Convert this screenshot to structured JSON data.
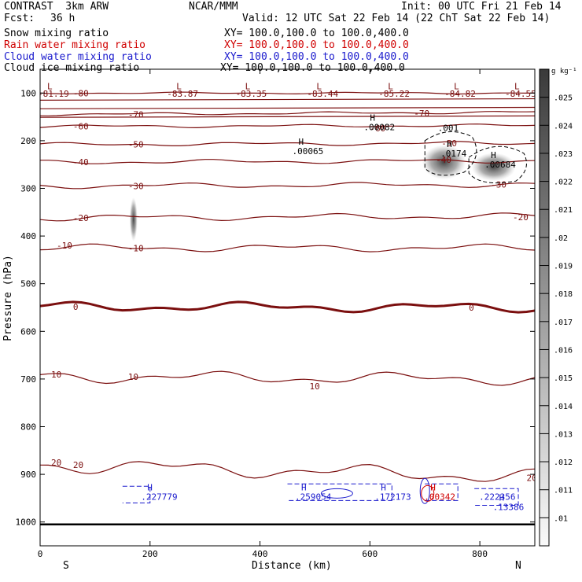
{
  "header": {
    "model": "CONTRAST  3km ARW",
    "org": "NCAR/MMM",
    "init": "Init: 00 UTC Fri 21 Feb 14",
    "fcst_label": "Fcst:",
    "fcst_value": "36 h",
    "valid": "Valid: 12 UTC Sat 22 Feb 14 (22 ChT Sat 22 Feb 14)"
  },
  "fields": [
    {
      "name": "Snow mixing ratio",
      "xy": "XY= 100.0,100.0 to 100.0,400.0",
      "color": "#000000"
    },
    {
      "name": "Rain water mixing ratio",
      "xy": "XY= 100.0,100.0 to 100.0,400.0",
      "color": "#d00000"
    },
    {
      "name": "Cloud water mixing ratio",
      "xy": "XY= 100.0,100.0 to 100.0,400.0",
      "color": "#1a1acd"
    },
    {
      "name": "Cloud ice mixing ratio",
      "xy": "XY= 100.0,100.0 to 100.0,400.0",
      "color": "#000000"
    }
  ],
  "chart_data": {
    "type": "cross-section",
    "xlabel": "Distance (km)",
    "ylabel": "Pressure (hPa)",
    "xlim": [
      0,
      900
    ],
    "ylim": [
      1050,
      50
    ],
    "x_ticks": [
      0,
      200,
      400,
      600,
      800
    ],
    "y_ticks": [
      100,
      200,
      300,
      400,
      500,
      600,
      700,
      800,
      900,
      1000
    ],
    "x_end_labels": {
      "left": "S",
      "right": "N"
    },
    "colorbar": {
      "unit": "g kg⁻¹",
      "labels": [
        ".025",
        ".024",
        ".023",
        ".022",
        ".021",
        ".02",
        ".019",
        ".018",
        ".017",
        ".016",
        ".015",
        ".014",
        ".013",
        ".012",
        ".011",
        ".01"
      ]
    },
    "temperature_isotherms": [
      {
        "value": -80,
        "p": [
          100,
          100
        ]
      },
      {
        "value": -70,
        "p": [
          145,
          140
        ]
      },
      {
        "value": -60,
        "p": [
          170,
          168
        ]
      },
      {
        "value": -50,
        "p": [
          208,
          205
        ]
      },
      {
        "value": -40,
        "p": [
          245,
          242
        ]
      },
      {
        "value": -30,
        "p": [
          295,
          292
        ]
      },
      {
        "value": -20,
        "p": [
          362,
          358
        ]
      },
      {
        "value": -10,
        "p": [
          425,
          425
        ]
      },
      {
        "value": 0,
        "p": [
          548,
          550
        ]
      },
      {
        "value": 10,
        "p": [
          695,
          700
        ]
      },
      {
        "value": 20,
        "p": [
          880,
          905
        ]
      }
    ],
    "extra_isotherm_labels": [
      {
        "text": "-70",
        "x": 680,
        "p": 142
      },
      {
        "text": "-60",
        "x": 600,
        "p": 174
      },
      {
        "text": "-50",
        "x": 730,
        "p": 205
      },
      {
        "text": "-40",
        "x": 720,
        "p": 240
      },
      {
        "text": "-30",
        "x": 820,
        "p": 292
      },
      {
        "text": "-20",
        "x": 860,
        "p": 360
      },
      {
        "text": "-10",
        "x": 30,
        "p": 420
      },
      {
        "text": "0",
        "x": 780,
        "p": 550
      },
      {
        "text": "10",
        "x": 20,
        "p": 690
      },
      {
        "text": "10",
        "x": 490,
        "p": 715
      },
      {
        "text": "20",
        "x": 20,
        "p": 875
      },
      {
        "text": "20",
        "x": 885,
        "p": 907
      }
    ],
    "tropopause_minima": [
      {
        "label": "L",
        "value": "-81.19",
        "x": 30
      },
      {
        "label": "L",
        "value": "-83.87",
        "x": 265
      },
      {
        "label": "L",
        "value": "-83.35",
        "x": 390
      },
      {
        "label": "L",
        "value": "-83.44",
        "x": 520
      },
      {
        "label": "L",
        "value": "-85.22",
        "x": 650
      },
      {
        "label": "L",
        "value": "-84.82",
        "x": 770
      },
      {
        "label": "L",
        "value": "-84.55",
        "x": 880
      }
    ],
    "maxima_labels": [
      {
        "label": "H",
        "value": ".00082",
        "x": 600,
        "p": 165,
        "color": "#000000"
      },
      {
        "label": "H",
        "value": ".00065",
        "x": 470,
        "p": 215,
        "color": "#000000"
      },
      {
        "label": "H",
        "value": ".0174",
        "x": 740,
        "p": 220,
        "color": "#000000"
      },
      {
        "label": "H",
        "value": ".00684",
        "x": 820,
        "p": 243,
        "color": "#000000"
      },
      {
        "label": "",
        "value": ".001",
        "x": 735,
        "p": 166,
        "color": "#000000"
      },
      {
        "label": "H",
        "value": ".227779",
        "x": 195,
        "p": 940,
        "color": "#1a1acd"
      },
      {
        "label": "H",
        "value": ".259054",
        "x": 475,
        "p": 940,
        "color": "#1a1acd"
      },
      {
        "label": "H",
        "value": ".172173",
        "x": 620,
        "p": 940,
        "color": "#1a1acd"
      },
      {
        "label": "H",
        "value": ".00342",
        "x": 710,
        "p": 940,
        "color": "#d00000"
      },
      {
        "label": "",
        "value": ".222356",
        "x": 810,
        "p": 940,
        "color": "#1a1acd"
      },
      {
        "label": "H",
        "value": ".13386",
        "x": 835,
        "p": 962,
        "color": "#1a1acd"
      }
    ]
  }
}
